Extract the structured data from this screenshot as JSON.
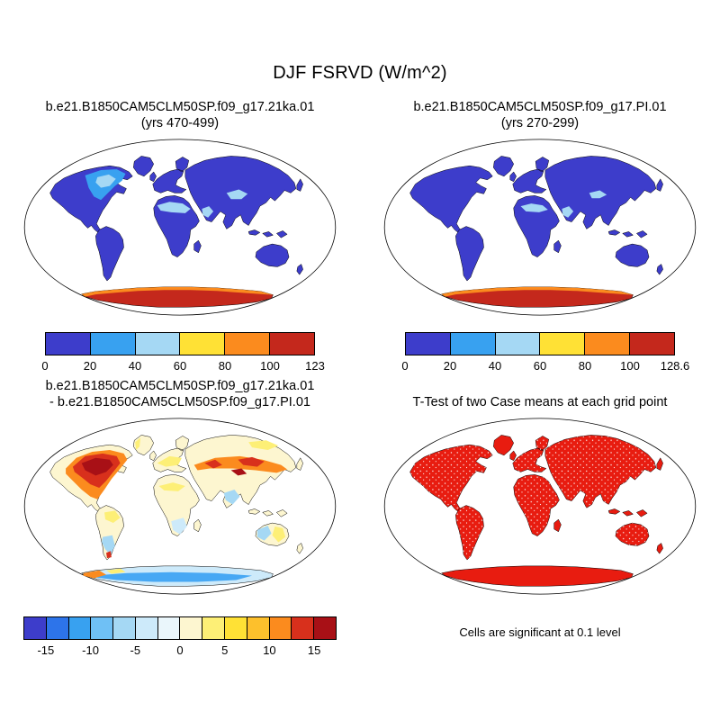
{
  "figure": {
    "title": "DJF FSRVD (W/m^2)"
  },
  "panels": [
    {
      "id": "case-21ka",
      "title_line1": "b.e21.B1850CAM5CLM50SP.f09_g17.21ka.01",
      "title_line2": "(yrs 470-499)",
      "colorbar": {
        "labels": [
          "0",
          "20",
          "40",
          "60",
          "80",
          "100",
          "123"
        ],
        "colors": [
          "#3d3dcb",
          "#38a1f0",
          "#a5d8f4",
          "#ffe135",
          "#fb8b1e",
          "#c4281c"
        ]
      }
    },
    {
      "id": "case-pi",
      "title_line1": "b.e21.B1850CAM5CLM50SP.f09_g17.PI.01",
      "title_line2": "(yrs 270-299)",
      "colorbar": {
        "labels": [
          "0",
          "20",
          "40",
          "60",
          "80",
          "100",
          "128.6"
        ],
        "colors": [
          "#3d3dcb",
          "#38a1f0",
          "#a5d8f4",
          "#ffe135",
          "#fb8b1e",
          "#c4281c"
        ]
      }
    },
    {
      "id": "difference",
      "title_line1": "b.e21.B1850CAM5CLM50SP.f09_g17.21ka.01",
      "title_line2": "- b.e21.B1850CAM5CLM50SP.f09_g17.PI.01",
      "colorbar": {
        "labels": [
          "-15",
          "-10",
          "-5",
          "0",
          "5",
          "10",
          "15"
        ],
        "colors": [
          "#3d3dcb",
          "#2d74ea",
          "#38a1f0",
          "#6fc0f5",
          "#a5d8f4",
          "#cdeafa",
          "#eaf6fb",
          "#fdf6d0",
          "#fdef76",
          "#ffe135",
          "#fdc02c",
          "#fb8b1e",
          "#d8301c",
          "#a81016"
        ]
      }
    },
    {
      "id": "t-test",
      "title_line1": "T-Test of two Case means at each grid point",
      "caption": "Cells are significant at 0.1 level"
    }
  ],
  "colors": {
    "deep_blue": "#3d3dcb",
    "mid_blue": "#38a1f0",
    "light_blue": "#a5d8f4",
    "pale_blue": "#cdeafa",
    "sky_blue": "#47a8f4",
    "yellow": "#ffe135",
    "pale_yellow": "#fdef76",
    "orange": "#fb8b1e",
    "red": "#d8301c",
    "dark_red": "#a81016",
    "case_red": "#c4281c",
    "bright_red": "#e81c10",
    "cream": "#fdf6d0",
    "coastline": "#000000",
    "background": "#ffffff"
  },
  "chart_data": [
    {
      "type": "heatmap",
      "subtype": "global-map",
      "title": "b.e21.B1850CAM5CLM50SP.f09_g17.21ka.01 (yrs 470-499)",
      "variable": "DJF FSRVD",
      "units": "W/m^2",
      "projection": "robinson",
      "legend_position": "bottom",
      "colorbar_levels": [
        0,
        20,
        40,
        60,
        80,
        100
      ],
      "colorbar_max_label": "123",
      "palette": [
        "#3d3dcb",
        "#38a1f0",
        "#a5d8f4",
        "#ffe135",
        "#fb8b1e",
        "#c4281c"
      ],
      "description": "Most land in deep blue (0-20); lighter blue patches over the Laurentide region of North America, the Sahara, Arabia and Tibet; Antarctica in orange-red high values up to 123."
    },
    {
      "type": "heatmap",
      "subtype": "global-map",
      "title": "b.e21.B1850CAM5CLM50SP.f09_g17.PI.01 (yrs 270-299)",
      "variable": "DJF FSRVD",
      "units": "W/m^2",
      "projection": "robinson",
      "legend_position": "bottom",
      "colorbar_levels": [
        0,
        20,
        40,
        60,
        80,
        100
      ],
      "colorbar_max_label": "128.6",
      "palette": [
        "#3d3dcb",
        "#38a1f0",
        "#a5d8f4",
        "#ffe135",
        "#fb8b1e",
        "#c4281c"
      ],
      "description": "Most land in deep blue (0-20); lighter blue over the Sahara, Arabia and Tibet; Antarctica in orange-red high values up to 128.6."
    },
    {
      "type": "heatmap",
      "subtype": "global-map-difference",
      "title": "b.e21.B1850CAM5CLM50SP.f09_g17.21ka.01 - b.e21.B1850CAM5CLM50SP.f09_g17.PI.01",
      "units": "W/m^2",
      "projection": "robinson",
      "legend_position": "bottom",
      "colorbar_levels": [
        -15,
        -10,
        -5,
        0,
        5,
        10,
        15
      ],
      "palette": [
        "#3d3dcb",
        "#2d74ea",
        "#38a1f0",
        "#6fc0f5",
        "#a5d8f4",
        "#cdeafa",
        "#eaf6fb",
        "#fdf6d0",
        "#fdef76",
        "#ffe135",
        "#fdc02c",
        "#fb8b1e",
        "#d8301c",
        "#a81016"
      ],
      "description": "Strong positive differences (orange/red/dark red) over central North America and central Eurasia; weak negatives (light blues) over southern South America, southern Africa, India/SE Asia, western Australia and Antarctica; most other land near zero (cream/pale yellow)."
    },
    {
      "type": "heatmap",
      "subtype": "significance-mask",
      "title": "T-Test of two Case means at each grid point",
      "note": "Cells are significant at 0.1 level",
      "projection": "robinson",
      "palette": [
        "#e81c10"
      ],
      "description": "Nearly all land cells significant (solid red) with scattered non-significant white speckles; oceans blank."
    }
  ]
}
